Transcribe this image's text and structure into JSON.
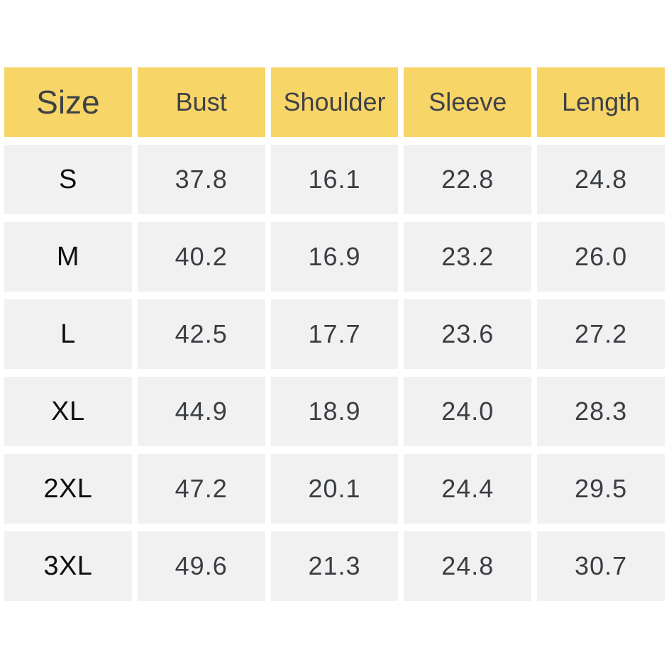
{
  "table": {
    "headers": [
      "Size",
      "Bust",
      "Shoulder",
      "Sleeve",
      "Length"
    ],
    "rows": [
      {
        "label": "S",
        "values": [
          "37.8",
          "16.1",
          "22.8",
          "24.8"
        ]
      },
      {
        "label": "M",
        "values": [
          "40.2",
          "16.9",
          "23.2",
          "26.0"
        ]
      },
      {
        "label": "L",
        "values": [
          "42.5",
          "17.7",
          "23.6",
          "27.2"
        ]
      },
      {
        "label": "XL",
        "values": [
          "44.9",
          "18.9",
          "24.0",
          "28.3"
        ]
      },
      {
        "label": "2XL",
        "values": [
          "47.2",
          "20.1",
          "24.4",
          "29.5"
        ]
      },
      {
        "label": "3XL",
        "values": [
          "49.6",
          "21.3",
          "24.8",
          "30.7"
        ]
      }
    ],
    "colors": {
      "header_background": "#F8D567",
      "header_text": "#3E4247",
      "row_background": "#F1F1F1",
      "value_text": "#3A3E43",
      "size_label_text": "#0D0E10",
      "gutter": "#FFFFFF"
    }
  },
  "chart_data": {
    "type": "table",
    "columns": [
      "Size",
      "Bust",
      "Shoulder",
      "Sleeve",
      "Length"
    ],
    "rows": [
      [
        "S",
        37.8,
        16.1,
        22.8,
        24.8
      ],
      [
        "M",
        40.2,
        16.9,
        23.2,
        26.0
      ],
      [
        "L",
        42.5,
        17.7,
        23.6,
        27.2
      ],
      [
        "XL",
        44.9,
        18.9,
        24.0,
        28.3
      ],
      [
        "2XL",
        47.2,
        20.1,
        24.4,
        29.5
      ],
      [
        "3XL",
        49.6,
        21.3,
        24.8,
        30.7
      ]
    ]
  }
}
